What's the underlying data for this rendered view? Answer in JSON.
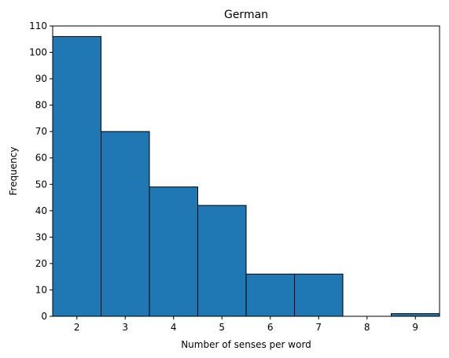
{
  "chart_data": {
    "type": "bar",
    "title": "German",
    "xlabel": "Number of senses per word",
    "ylabel": "Frequency",
    "categories": [
      "2",
      "3",
      "4",
      "5",
      "6",
      "7",
      "8",
      "9"
    ],
    "x": [
      2,
      3,
      4,
      5,
      6,
      7,
      8,
      9
    ],
    "values": [
      106,
      70,
      49,
      42,
      16,
      16,
      0,
      1
    ],
    "xlim": [
      1.5,
      9.5
    ],
    "ylim": [
      0,
      110
    ],
    "yticks": [
      "0",
      "10",
      "20",
      "30",
      "40",
      "50",
      "60",
      "70",
      "80",
      "90",
      "100",
      "110"
    ],
    "grid": false,
    "legend": "none",
    "bar_color": "#1f77b4",
    "edge_color": "#000000"
  }
}
